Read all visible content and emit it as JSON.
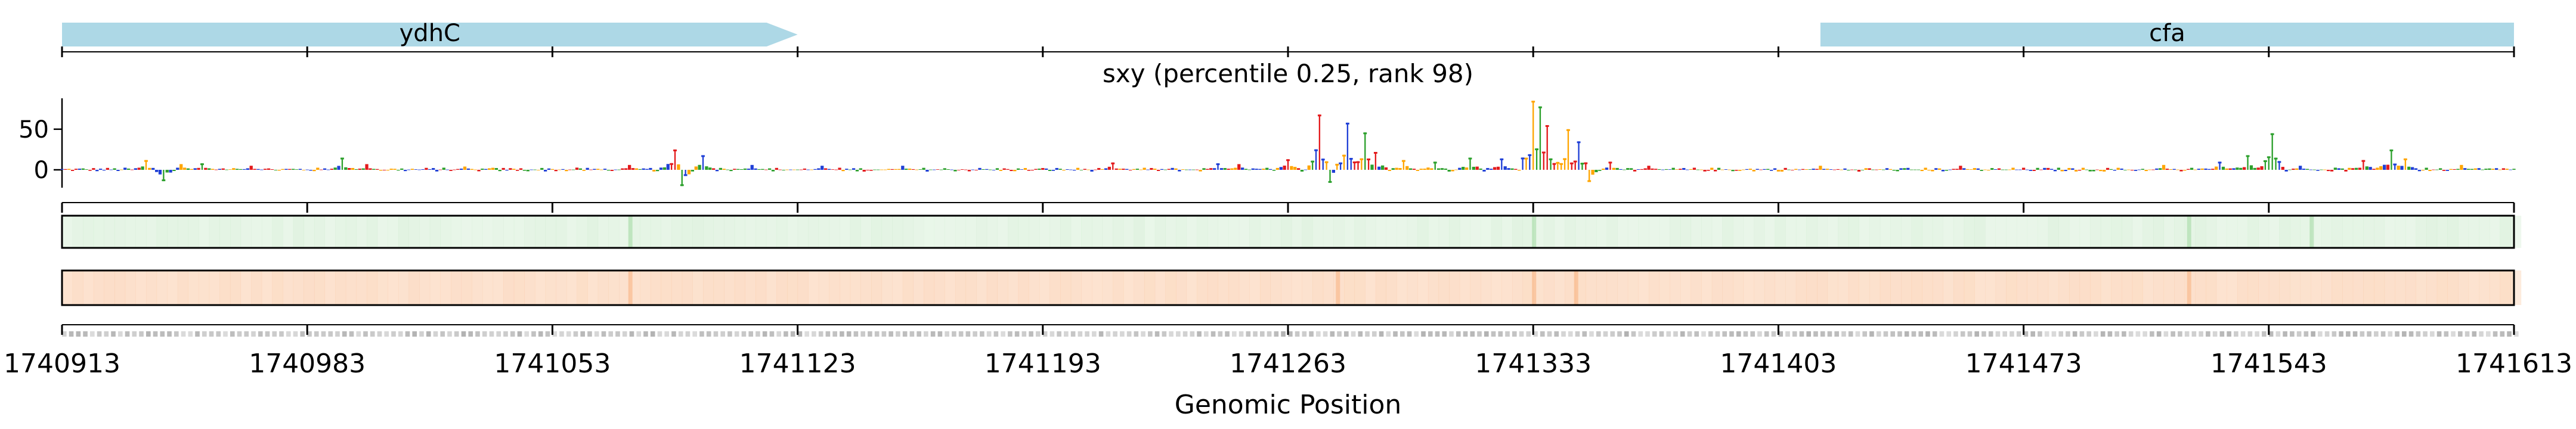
{
  "chart_data": {
    "type": "line",
    "title": "sxy (percentile 0.25, rank 98)",
    "xlabel": "Genomic Position",
    "ylabel": "",
    "xlim": [
      1740913,
      1741613
    ],
    "ylim": [
      -22,
      88
    ],
    "xticks": [
      1740913,
      1740983,
      1741053,
      1741123,
      1741193,
      1741263,
      1741333,
      1741403,
      1741473,
      1741543,
      1741613
    ],
    "yticks": [
      0,
      50
    ],
    "genes": [
      {
        "name": "ydhC",
        "start": 1740913,
        "end": 1741123,
        "strand": "+",
        "color": "#add8e6"
      },
      {
        "name": "cfa",
        "start": 1741415,
        "end": 1741613,
        "strand": "+",
        "color": "#add8e6"
      }
    ],
    "base_colors": {
      "A": "#2ca02c",
      "C": "#1f3fd6",
      "G": "#ffa500",
      "T": "#e31a1c"
    },
    "peaks": [
      {
        "x": 1740937,
        "y": 12
      },
      {
        "x": 1740942,
        "y": -14
      },
      {
        "x": 1740947,
        "y": 7
      },
      {
        "x": 1740953,
        "y": 8
      },
      {
        "x": 1740967,
        "y": 5
      },
      {
        "x": 1740993,
        "y": 15
      },
      {
        "x": 1741000,
        "y": 7
      },
      {
        "x": 1741028,
        "y": 4
      },
      {
        "x": 1741075,
        "y": 6
      },
      {
        "x": 1741088,
        "y": 25
      },
      {
        "x": 1741090,
        "y": -20
      },
      {
        "x": 1741096,
        "y": 18
      },
      {
        "x": 1741110,
        "y": 6
      },
      {
        "x": 1741130,
        "y": 5
      },
      {
        "x": 1741153,
        "y": 5
      },
      {
        "x": 1741213,
        "y": 9
      },
      {
        "x": 1741243,
        "y": 8
      },
      {
        "x": 1741249,
        "y": 7
      },
      {
        "x": 1741263,
        "y": 13
      },
      {
        "x": 1741272,
        "y": 68
      },
      {
        "x": 1741275,
        "y": -16
      },
      {
        "x": 1741280,
        "y": 58
      },
      {
        "x": 1741285,
        "y": 46
      },
      {
        "x": 1741288,
        "y": 22
      },
      {
        "x": 1741296,
        "y": 12
      },
      {
        "x": 1741305,
        "y": 10
      },
      {
        "x": 1741315,
        "y": 15
      },
      {
        "x": 1741324,
        "y": 14
      },
      {
        "x": 1741333,
        "y": 85
      },
      {
        "x": 1741335,
        "y": 78
      },
      {
        "x": 1741337,
        "y": 55
      },
      {
        "x": 1741343,
        "y": 50
      },
      {
        "x": 1741346,
        "y": 35
      },
      {
        "x": 1741349,
        "y": -15
      },
      {
        "x": 1741355,
        "y": 10
      },
      {
        "x": 1741366,
        "y": 5
      },
      {
        "x": 1741415,
        "y": 5
      },
      {
        "x": 1741455,
        "y": 5
      },
      {
        "x": 1741513,
        "y": 6
      },
      {
        "x": 1741529,
        "y": 10
      },
      {
        "x": 1741537,
        "y": 18
      },
      {
        "x": 1741544,
        "y": 45
      },
      {
        "x": 1741552,
        "y": 5
      },
      {
        "x": 1741570,
        "y": 12
      },
      {
        "x": 1741578,
        "y": 25
      },
      {
        "x": 1741582,
        "y": 14
      },
      {
        "x": 1741598,
        "y": 6
      }
    ],
    "green_track_highlights": [
      1741075,
      1741333,
      1741520,
      1741555
    ],
    "orange_track_highlights": [
      1741075,
      1741277,
      1741333,
      1741345,
      1741520
    ]
  }
}
